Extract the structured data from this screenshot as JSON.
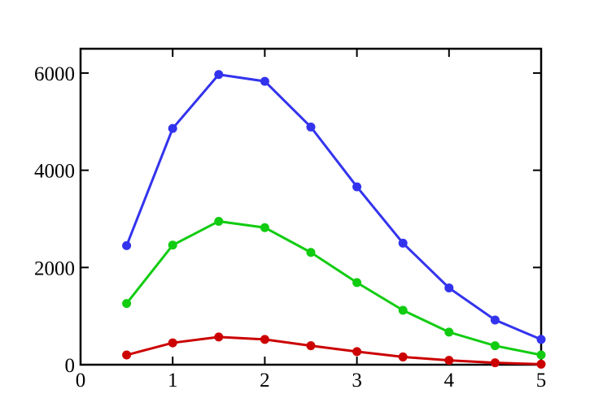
{
  "chart_data": {
    "type": "line",
    "x": [
      0.5,
      1,
      1.5,
      2,
      2.5,
      3,
      3.5,
      4,
      4.5,
      5
    ],
    "series": [
      {
        "color": "#3333ee",
        "values": [
          2450,
          4860,
          5970,
          5830,
          4890,
          3660,
          2500,
          1580,
          920,
          520
        ]
      },
      {
        "color": "#11cc11",
        "values": [
          1260,
          2460,
          2950,
          2820,
          2310,
          1690,
          1120,
          670,
          390,
          200
        ]
      },
      {
        "color": "#cc0000",
        "values": [
          200,
          450,
          570,
          520,
          390,
          270,
          160,
          90,
          40,
          10
        ]
      }
    ],
    "xlim": [
      0,
      5
    ],
    "xticks": [
      0,
      1,
      2,
      3,
      4,
      5
    ],
    "ylim": [
      0,
      6500
    ],
    "yticks": [
      0,
      2000,
      4000,
      6000
    ],
    "grid": false
  }
}
